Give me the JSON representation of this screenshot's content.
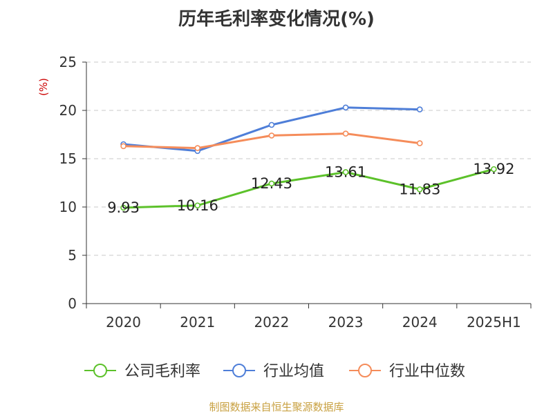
{
  "chart_data": {
    "type": "line",
    "title": "历年毛利率变化情况(%)",
    "ylabel": "(%)",
    "xlabel": "",
    "categories": [
      "2020",
      "2021",
      "2022",
      "2023",
      "2024",
      "2025H1"
    ],
    "ylim": [
      0,
      25
    ],
    "yticks": [
      0,
      5,
      10,
      15,
      20,
      25
    ],
    "grid": true,
    "legend_position": "bottom",
    "series": [
      {
        "name": "公司毛利率",
        "color": "#5cc12a",
        "values": [
          9.93,
          10.16,
          12.43,
          13.61,
          11.83,
          13.92
        ],
        "labels": [
          "9.93",
          "10.16",
          "12.43",
          "13.61",
          "11.83",
          "13.92"
        ]
      },
      {
        "name": "行业均值",
        "color": "#4e7ed8",
        "values": [
          16.5,
          15.8,
          18.5,
          20.3,
          20.1,
          null
        ]
      },
      {
        "name": "行业中位数",
        "color": "#f58c5a",
        "values": [
          16.3,
          16.1,
          17.4,
          17.6,
          16.6,
          null
        ]
      }
    ]
  },
  "source": "制图数据来自恒生聚源数据库"
}
